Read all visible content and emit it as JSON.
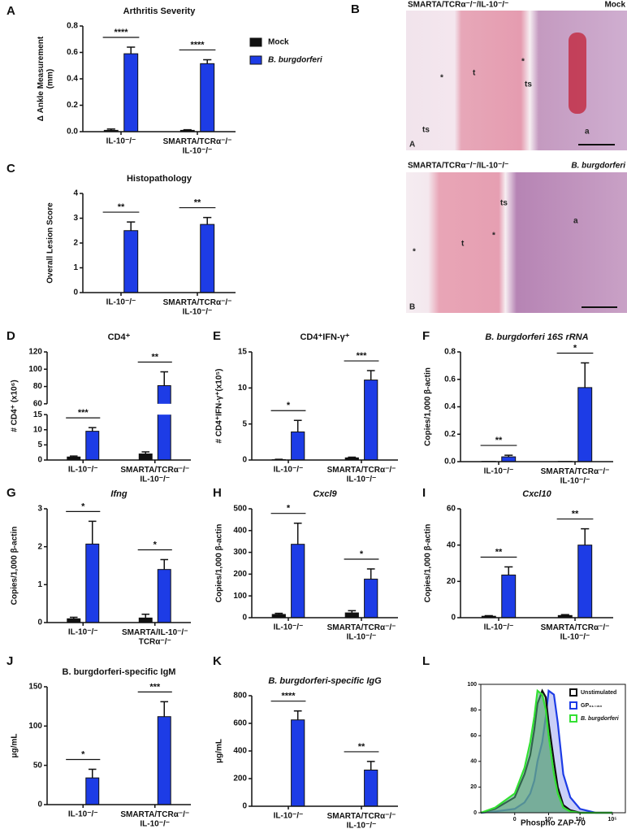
{
  "chart_data": [
    {
      "type": "bar",
      "panel": "A",
      "title": "Arthritis Severity",
      "ylabel": "Δ Ankle Measurement\n(mm)",
      "categories": [
        "IL-10⁻/⁻",
        "SMARTA/TCRα⁻/⁻\nIL-10⁻/⁻"
      ],
      "series": [
        {
          "name": "Mock",
          "color": "#111111",
          "values": [
            0.01,
            0.01
          ],
          "errors": [
            0.01,
            0.005
          ]
        },
        {
          "name": "B. burgdorferi",
          "color": "#1d3ce6",
          "values": [
            0.59,
            0.515
          ],
          "errors": [
            0.05,
            0.03
          ]
        }
      ],
      "ylim": [
        0,
        0.8
      ],
      "yticks": [
        {
          "value": 0,
          "label": "0.0"
        },
        0.2,
        0.4,
        0.6,
        0.8
      ],
      "significance": [
        "****",
        "****"
      ],
      "legend": true
    },
    {
      "type": "bar",
      "panel": "C",
      "title": "Histopathology",
      "ylabel": "Overall Lesion Score",
      "categories": [
        "IL-10⁻/⁻",
        "SMARTA/TCRα⁻/⁻\nIL-10⁻/⁻"
      ],
      "series": [
        {
          "color": "#111111",
          "values": [
            0,
            0
          ]
        },
        {
          "color": "#1d3ce6",
          "values": [
            2.5,
            2.75
          ],
          "errors": [
            0.35,
            0.28
          ]
        }
      ],
      "ylim": [
        0,
        4
      ],
      "yticks": [
        0,
        1,
        2,
        3,
        4
      ],
      "significance": [
        "**",
        "**"
      ]
    },
    {
      "type": "bar",
      "panel": "D",
      "title": "CD4⁺",
      "ylabel": "# CD4⁺ (x10⁶)",
      "categories": [
        "IL-10⁻/⁻",
        "SMARTA/TCRα⁻/⁻\nIL-10⁻/⁻"
      ],
      "series": [
        {
          "color": "#111111",
          "values": [
            1,
            2
          ],
          "errors": [
            0.3,
            0.7
          ]
        },
        {
          "color": "#1d3ce6",
          "values": [
            9.5,
            81
          ],
          "errors": [
            1.2,
            16
          ]
        }
      ],
      "ylim": [
        0,
        120
      ],
      "axis_break": [
        15,
        60
      ],
      "yticks": [
        0,
        5,
        10,
        15,
        60,
        80,
        100,
        120
      ],
      "significance": [
        "***",
        "**"
      ]
    },
    {
      "type": "bar",
      "panel": "E",
      "title": "CD4⁺IFN-γ⁺",
      "ylabel": "# CD4⁺IFN-γ⁺(x10⁵)",
      "categories": [
        "IL-10⁻/⁻",
        "SMARTA/TCRα⁻/⁻\nIL-10⁻/⁻"
      ],
      "series": [
        {
          "color": "#111111",
          "values": [
            0.05,
            0.3
          ],
          "errors": [
            0.05,
            0.1
          ]
        },
        {
          "color": "#1d3ce6",
          "values": [
            3.9,
            11.1
          ],
          "errors": [
            1.6,
            1.3
          ]
        }
      ],
      "ylim": [
        0,
        15
      ],
      "yticks": [
        0,
        5,
        10,
        15
      ],
      "significance": [
        "*",
        "***"
      ]
    },
    {
      "type": "bar",
      "panel": "F",
      "title": "B. burgdorferi 16S rRNA",
      "title_italic": true,
      "ylabel": "Copies/1,000 β-actin",
      "categories": [
        "IL-10⁻/⁻",
        "SMARTA/TCRα⁻/⁻\nIL-10⁻/⁻"
      ],
      "series": [
        {
          "color": "#111111",
          "values": [
            0.002,
            0.002
          ]
        },
        {
          "color": "#1d3ce6",
          "values": [
            0.035,
            0.54
          ],
          "errors": [
            0.012,
            0.18
          ]
        }
      ],
      "ylim": [
        0,
        0.8
      ],
      "yticks": [
        {
          "value": 0,
          "label": "0.0"
        },
        0.2,
        0.4,
        0.6,
        0.8
      ],
      "significance": [
        "**",
        "*"
      ]
    },
    {
      "type": "bar",
      "panel": "G",
      "title": "Ifng",
      "title_italic": true,
      "ylabel": "Copies/1,000 β-actin",
      "categories": [
        "IL-10⁻/⁻",
        "SMARTA/IL-10⁻/⁻\nTCRα⁻/⁻"
      ],
      "series": [
        {
          "color": "#111111",
          "values": [
            0.1,
            0.12
          ],
          "errors": [
            0.04,
            0.1
          ]
        },
        {
          "color": "#1d3ce6",
          "values": [
            2.07,
            1.4
          ],
          "errors": [
            0.6,
            0.26
          ]
        }
      ],
      "ylim": [
        0,
        3
      ],
      "yticks": [
        0,
        1,
        2,
        3
      ],
      "significance": [
        "*",
        "*"
      ]
    },
    {
      "type": "bar",
      "panel": "H",
      "title": "Cxcl9",
      "title_italic": true,
      "ylabel": "Copies/1,000 β-actin",
      "categories": [
        "IL-10⁻/⁻",
        "SMARTA/TCRα⁻/⁻\nIL-10⁻/⁻"
      ],
      "series": [
        {
          "color": "#111111",
          "values": [
            15,
            22
          ],
          "errors": [
            5,
            10
          ]
        },
        {
          "color": "#1d3ce6",
          "values": [
            337,
            177
          ],
          "errors": [
            97,
            47
          ]
        }
      ],
      "ylim": [
        0,
        500
      ],
      "yticks": [
        0,
        100,
        200,
        300,
        400,
        500
      ],
      "significance": [
        "*",
        "*"
      ]
    },
    {
      "type": "bar",
      "panel": "I",
      "title": "Cxcl10",
      "title_italic": true,
      "ylabel": "Copies/1,000 β-actin",
      "categories": [
        "IL-10⁻/⁻",
        "SMARTA/TCRα⁻/⁻\nIL-10⁻/⁻"
      ],
      "series": [
        {
          "color": "#111111",
          "values": [
            0.8,
            1.2
          ],
          "errors": [
            0.3,
            0.5
          ]
        },
        {
          "color": "#1d3ce6",
          "values": [
            23.5,
            40
          ],
          "errors": [
            4.5,
            9
          ]
        }
      ],
      "ylim": [
        0,
        60
      ],
      "yticks": [
        0,
        20,
        40,
        60
      ],
      "significance": [
        "**",
        "**"
      ]
    },
    {
      "type": "bar",
      "panel": "J",
      "title": "B. burgdorferi-specific IgM",
      "ylabel": "μg/mL",
      "categories": [
        "IL-10⁻/⁻",
        "SMARTA/TCRα⁻/⁻\nIL-10⁻/⁻"
      ],
      "series": [
        {
          "color": "#111111",
          "values": [
            0,
            0
          ]
        },
        {
          "color": "#1d3ce6",
          "values": [
            34,
            112
          ],
          "errors": [
            11,
            19
          ]
        }
      ],
      "ylim": [
        0,
        150
      ],
      "yticks": [
        0,
        50,
        100,
        150
      ],
      "significance": [
        "*",
        "***"
      ]
    },
    {
      "type": "bar",
      "panel": "K",
      "title": "B. burgdorferi-specific IgG",
      "title_italic": true,
      "ylabel": "μg/mL",
      "categories": [
        "IL-10⁻/⁻",
        "SMARTA/TCRα⁻/⁻\nIL-10⁻/⁻"
      ],
      "series": [
        {
          "color": "#111111",
          "values": [
            0,
            0
          ]
        },
        {
          "color": "#1d3ce6",
          "values": [
            625,
            262
          ],
          "errors": [
            65,
            62
          ]
        }
      ],
      "ylim": [
        0,
        800
      ],
      "yticks": [
        0,
        200,
        400,
        600,
        800
      ],
      "significance": [
        "****",
        "**"
      ]
    },
    {
      "type": "area",
      "panel": "L",
      "xlabel": "Phospho ZAP-70",
      "x_scale": "symlog",
      "x": [
        -1000,
        -300,
        0,
        100,
        200,
        300,
        400,
        600,
        800,
        1000,
        1500,
        2000,
        3000,
        5000,
        10000,
        30000,
        100000
      ],
      "series": [
        {
          "name": "Unstimulated",
          "color": "#111111",
          "fill": "#8f9a88",
          "values": [
            0,
            3,
            12,
            30,
            45,
            65,
            85,
            95,
            90,
            70,
            40,
            20,
            6,
            2,
            0,
            0,
            0
          ]
        },
        {
          "name": "GP₆₁₋₈₀",
          "color": "#1d3ce6",
          "fill": "#9fa8f0",
          "values": [
            0,
            1,
            3,
            8,
            15,
            25,
            40,
            55,
            75,
            95,
            92,
            70,
            30,
            12,
            3,
            0,
            0
          ]
        },
        {
          "name": "B. burgdorferi",
          "color": "#33e033",
          "fill": "#4caa80",
          "values": [
            0,
            4,
            15,
            35,
            55,
            75,
            95,
            92,
            80,
            60,
            30,
            15,
            4,
            1,
            0,
            0,
            0
          ]
        }
      ],
      "xlim": [
        -1000,
        250000
      ],
      "xticks": [
        0,
        {
          "value": 1000,
          "label": "10³"
        },
        {
          "value": 10000,
          "label": "10⁴"
        },
        {
          "value": 100000,
          "label": "10⁵"
        }
      ],
      "ylim": [
        0,
        100
      ],
      "yticks": [
        0,
        20,
        40,
        60,
        80,
        100
      ]
    }
  ],
  "histology": {
    "panel": "B",
    "images": [
      {
        "title": "SMARTA/TCRα⁻/⁻/IL-10⁻/⁻",
        "condition": "Mock",
        "corner": "A",
        "labels": [
          "t",
          "*",
          "*",
          "ts",
          "ts",
          "a"
        ]
      },
      {
        "title": "SMARTA/TCRα⁻/⁻/IL-10⁻/⁻",
        "condition": "B. burgdorferi",
        "corner": "B",
        "labels": [
          "t",
          "*",
          "*",
          "ts",
          "a"
        ]
      }
    ]
  }
}
